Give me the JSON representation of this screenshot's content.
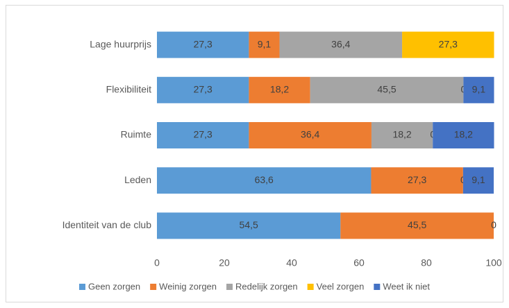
{
  "chart_data": {
    "type": "stacked_barh",
    "categories": [
      "Lage huurprijs",
      "Flexibiliteit",
      "Ruimte",
      "Leden",
      "Identiteit van de club"
    ],
    "series": [
      {
        "name": "Geen zorgen",
        "color": "#5b9bd5",
        "values": [
          27.3,
          27.3,
          27.3,
          63.6,
          54.5
        ],
        "value_labels": [
          "27,3",
          "27,3",
          "27,3",
          "63,6",
          "54,5"
        ]
      },
      {
        "name": "Weinig zorgen",
        "color": "#ed7d31",
        "values": [
          9.1,
          18.2,
          36.4,
          27.3,
          45.5
        ],
        "value_labels": [
          "9,1",
          "18,2",
          "36,4",
          "27,3",
          "45,5"
        ]
      },
      {
        "name": "Redelijk zorgen",
        "color": "#a5a5a5",
        "values": [
          36.4,
          45.5,
          18.2,
          null,
          null
        ],
        "value_labels": [
          "36,4",
          "45,5",
          "18,2",
          null,
          null
        ]
      },
      {
        "name": "Veel zorgen",
        "color": "#ffc000",
        "values": [
          27.3,
          0,
          0,
          0,
          null
        ],
        "value_labels": [
          "27,3",
          "0",
          "0",
          "0",
          null
        ]
      },
      {
        "name": "Weet ik niet",
        "color": "#4472c4",
        "values": [
          null,
          9.1,
          18.2,
          9.1,
          0
        ],
        "value_labels": [
          null,
          "9,1",
          "18,2",
          "9,1",
          "0"
        ]
      }
    ],
    "xlim": [
      0,
      100
    ],
    "xticks": [
      0,
      20,
      40,
      60,
      80,
      100
    ],
    "grid": false,
    "legend": "bottom"
  }
}
